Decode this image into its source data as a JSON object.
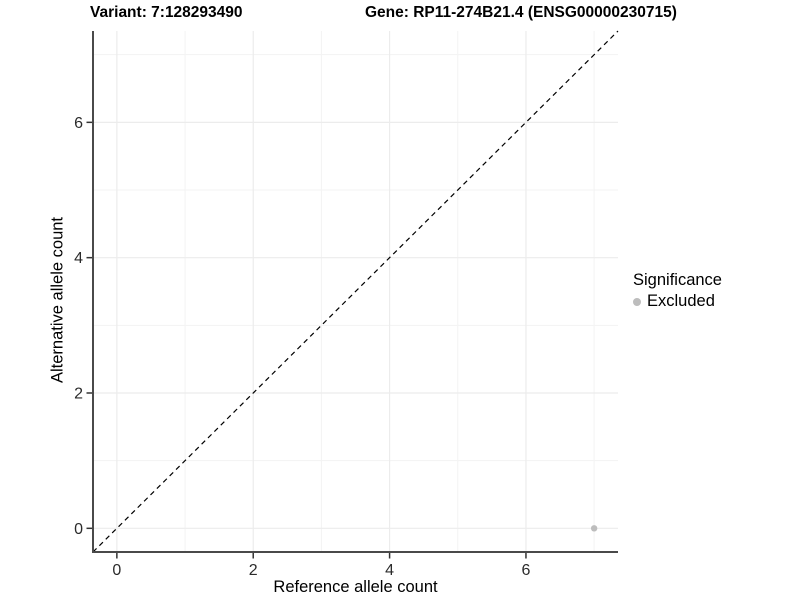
{
  "titles": {
    "variant": "Variant: 7:128293490",
    "gene": "Gene: RP11-274B21.4 (ENSG00000230715)"
  },
  "legend": {
    "title": "Significance",
    "items": [
      {
        "label": "Excluded",
        "color": "#bdbdbd"
      }
    ]
  },
  "chart_data": {
    "type": "scatter",
    "xlabel": "Reference allele count",
    "ylabel": "Alternative allele count",
    "xlim": [
      -0.35,
      7.35
    ],
    "ylim": [
      -0.35,
      7.35
    ],
    "x_ticks": [
      0,
      2,
      4,
      6
    ],
    "y_ticks": [
      0,
      2,
      4,
      6
    ],
    "x_minor_ticks": [
      1,
      3,
      5,
      7
    ],
    "y_minor_ticks": [
      1,
      3,
      5,
      7
    ],
    "grid": "major+minor",
    "legend_position": "right",
    "series": [
      {
        "name": "Excluded",
        "color": "#bdbdbd",
        "point_radius": 3.2,
        "points": [
          {
            "x": 7,
            "y": 0
          }
        ]
      }
    ],
    "reference_line": {
      "slope": 1,
      "intercept": 0,
      "style": "dashed",
      "color": "#000000"
    }
  },
  "colors": {
    "background": "#ffffff",
    "grid_major": "#ececec",
    "grid_minor": "#f3f3f3",
    "axis_line": "#4a4a4a",
    "tick_mark": "#333333",
    "tick_label": "#2b2b2b"
  }
}
